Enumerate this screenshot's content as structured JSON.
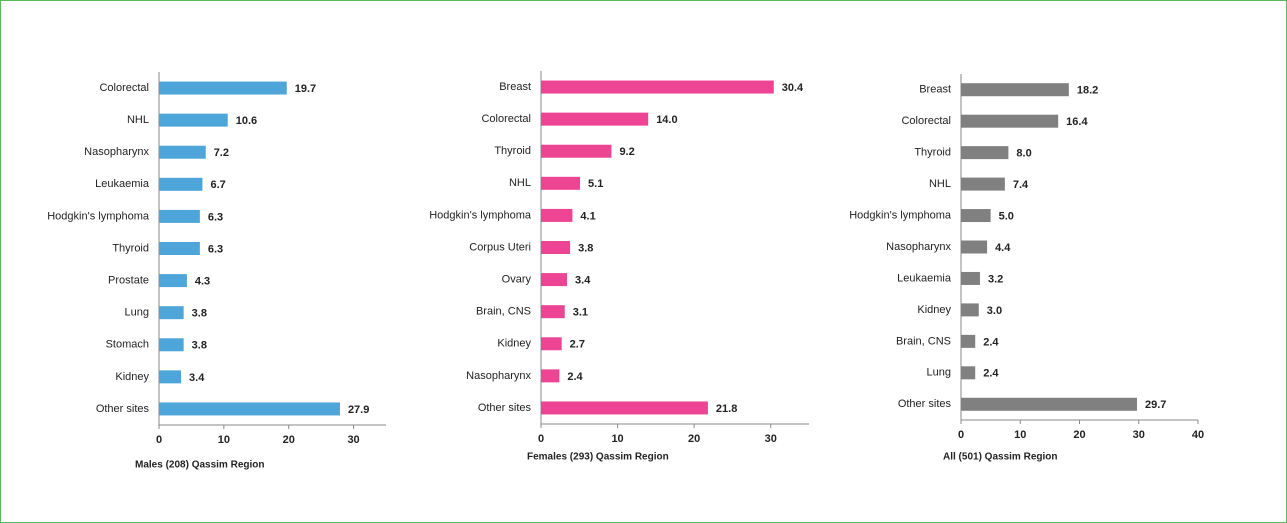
{
  "chart_data": [
    {
      "type": "bar",
      "orientation": "horizontal",
      "title": "Males (208) Qassim Region",
      "color": "#4ea5d9",
      "categories": [
        "Colorectal",
        "NHL",
        "Nasopharynx",
        "Leukaemia",
        "Hodgkin's lymphoma",
        "Thyroid",
        "Prostate",
        "Lung",
        "Stomach",
        "Kidney",
        "Other sites"
      ],
      "values": [
        19.7,
        10.6,
        7.2,
        6.7,
        6.3,
        6.3,
        4.3,
        3.8,
        3.8,
        3.4,
        27.9
      ],
      "value_labels": [
        "19.7",
        "10.6",
        "7.2",
        "6.7",
        "6.3",
        "6.3",
        "4.3",
        "3.8",
        "3.8",
        "3.4",
        "27.9"
      ],
      "xlim": [
        0,
        35
      ],
      "xticks": [
        0,
        10,
        20,
        30
      ]
    },
    {
      "type": "bar",
      "orientation": "horizontal",
      "title": "Females (293) Qassim Region",
      "color": "#ee4494",
      "categories": [
        "Breast",
        "Colorectal",
        "Thyroid",
        "NHL",
        "Hodgkin's lymphoma",
        "Corpus Uteri",
        "Ovary",
        "Brain, CNS",
        "Kidney",
        "Nasopharynx",
        "Other sites"
      ],
      "values": [
        30.4,
        14.0,
        9.2,
        5.1,
        4.1,
        3.8,
        3.4,
        3.1,
        2.7,
        2.4,
        21.8
      ],
      "value_labels": [
        "30.4",
        "14.0",
        "9.2",
        "5.1",
        "4.1",
        "3.8",
        "3.4",
        "3.1",
        "2.7",
        "2.4",
        "21.8"
      ],
      "xlim": [
        0,
        35
      ],
      "xticks": [
        0,
        10,
        20,
        30
      ]
    },
    {
      "type": "bar",
      "orientation": "horizontal",
      "title": "All (501) Qassim Region",
      "color": "#808080",
      "categories": [
        "Breast",
        "Colorectal",
        "Thyroid",
        "NHL",
        "Hodgkin's lymphoma",
        "Nasopharynx",
        "Leukaemia",
        "Kidney",
        "Brain, CNS",
        "Lung",
        "Other sites"
      ],
      "values": [
        18.2,
        16.4,
        8.0,
        7.4,
        5.0,
        4.4,
        3.2,
        3.0,
        2.4,
        2.4,
        29.7
      ],
      "value_labels": [
        "18.2",
        "16.4",
        "8.0",
        "7.4",
        "5.0",
        "4.4",
        "3.2",
        "3.0",
        "2.4",
        "2.4",
        "29.7"
      ],
      "xlim": [
        0,
        40
      ],
      "xticks": [
        0,
        10,
        20,
        30,
        40
      ]
    }
  ]
}
